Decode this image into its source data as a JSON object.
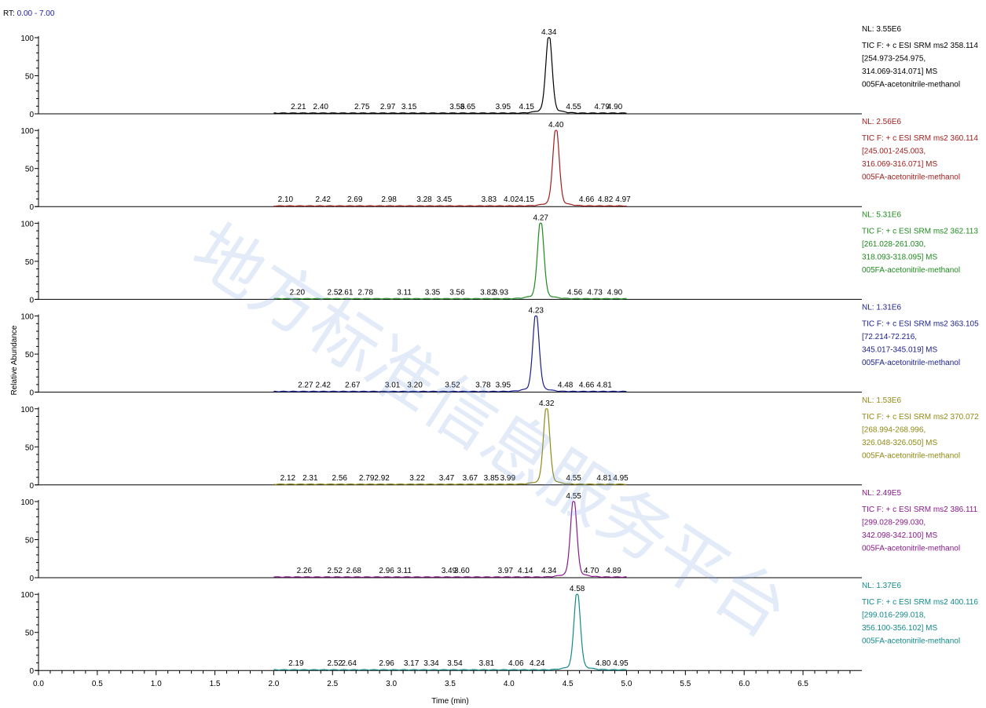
{
  "header": {
    "rt_prefix": "RT:",
    "rt_range": "0.00 - 7.00"
  },
  "watermark": "地方标准信息服务平台",
  "chart_data": {
    "type": "line",
    "xlabel": "Time (min)",
    "ylabel": "Relative Abundance",
    "xlim": [
      0.0,
      7.0
    ],
    "x_ticks": [
      "0.0",
      "0.5",
      "1.0",
      "1.5",
      "2.0",
      "2.5",
      "3.0",
      "3.5",
      "4.0",
      "4.5",
      "5.0",
      "5.5",
      "6.0",
      "6.5"
    ],
    "ylim": [
      0,
      100
    ],
    "y_ticks": [
      "0",
      "50",
      "100"
    ],
    "trace_range": [
      2.0,
      5.0
    ],
    "panels": [
      {
        "color": "#000000",
        "peak_rt": 4.34,
        "peak_label": "4.34",
        "minor_labels": [
          "2.21",
          "2.40",
          "2.75",
          "2.97",
          "3.15",
          "3.56",
          "3.65",
          "3.95",
          "4.15",
          "4.55",
          "4.79",
          "4.90"
        ],
        "nl": "NL: 3.55E6",
        "info": [
          "TIC F: + c ESI SRM ms2 358.114",
          "[254.973-254.975,",
          "314.069-314.071]  MS",
          "005FA-acetonitrile-methanol"
        ]
      },
      {
        "color": "#a01e1e",
        "peak_rt": 4.4,
        "peak_label": "4.40",
        "minor_labels": [
          "2.10",
          "2.42",
          "2.69",
          "2.98",
          "3.28",
          "3.45",
          "3.83",
          "4.02",
          "4.15",
          "4.66",
          "4.82",
          "4.97"
        ],
        "nl": "NL: 2.56E6",
        "info": [
          "TIC F: + c ESI SRM ms2 360.114",
          "[245.001-245.003,",
          "316.069-316.071]  MS",
          "005FA-acetonitrile-methanol"
        ]
      },
      {
        "color": "#1f8a1f",
        "peak_rt": 4.27,
        "peak_label": "4.27",
        "minor_labels": [
          "2.20",
          "2.52",
          "2.61",
          "2.78",
          "3.11",
          "3.35",
          "3.56",
          "3.82",
          "3.93",
          "4.56",
          "4.73",
          "4.90"
        ],
        "nl": "NL: 5.31E6",
        "info": [
          "TIC F: + c ESI SRM ms2 362.113",
          "[261.028-261.030,",
          "318.093-318.095]  MS",
          "005FA-acetonitrile-methanol"
        ]
      },
      {
        "color": "#1b1f8a",
        "peak_rt": 4.23,
        "peak_label": "4.23",
        "minor_labels": [
          "2.27",
          "2.42",
          "2.67",
          "3.01",
          "3.20",
          "3.52",
          "3.78",
          "3.95",
          "4.48",
          "4.66",
          "4.81"
        ],
        "nl": "NL: 1.31E6",
        "info": [
          "TIC F: + c ESI SRM ms2 363.105",
          "[72.214-72.216,",
          "345.017-345.019]  MS",
          "005FA-acetonitrile-methanol"
        ]
      },
      {
        "color": "#8f8a14",
        "peak_rt": 4.32,
        "peak_label": "4.32",
        "minor_labels": [
          "2.12",
          "2.31",
          "2.56",
          "2.79",
          "2.92",
          "3.22",
          "3.47",
          "3.67",
          "3.85",
          "3.99",
          "4.55",
          "4.81",
          "4.95"
        ],
        "nl": "NL: 1.53E6",
        "info": [
          "TIC F: + c ESI SRM ms2 370.072",
          "[268.994-268.996,",
          "326.048-326.050]  MS",
          "005FA-acetonitrile-methanol"
        ]
      },
      {
        "color": "#8a1a8a",
        "peak_rt": 4.55,
        "peak_label": "4.55",
        "minor_labels": [
          "2.26",
          "2.52",
          "2.68",
          "2.96",
          "3.11",
          "3.49",
          "3.60",
          "3.97",
          "4.14",
          "4.34",
          "4.70",
          "4.89"
        ],
        "nl": "NL: 2.49E5",
        "info": [
          "TIC F: + c ESI SRM ms2 386.111",
          "[299.028-299.030,",
          "342.098-342.100]  MS",
          "005FA-acetonitrile-methanol"
        ]
      },
      {
        "color": "#138a8a",
        "peak_rt": 4.58,
        "peak_label": "4.58",
        "minor_labels": [
          "2.19",
          "2.52",
          "2.64",
          "2.96",
          "3.17",
          "3.34",
          "3.54",
          "3.81",
          "4.06",
          "4.24",
          "4.80",
          "4.95"
        ],
        "nl": "NL: 1.37E6",
        "info": [
          "TIC F: + c ESI SRM ms2 400.116",
          "[299.016-299.018,",
          "356.100-356.102]  MS",
          "005FA-acetonitrile-methanol"
        ]
      }
    ]
  }
}
